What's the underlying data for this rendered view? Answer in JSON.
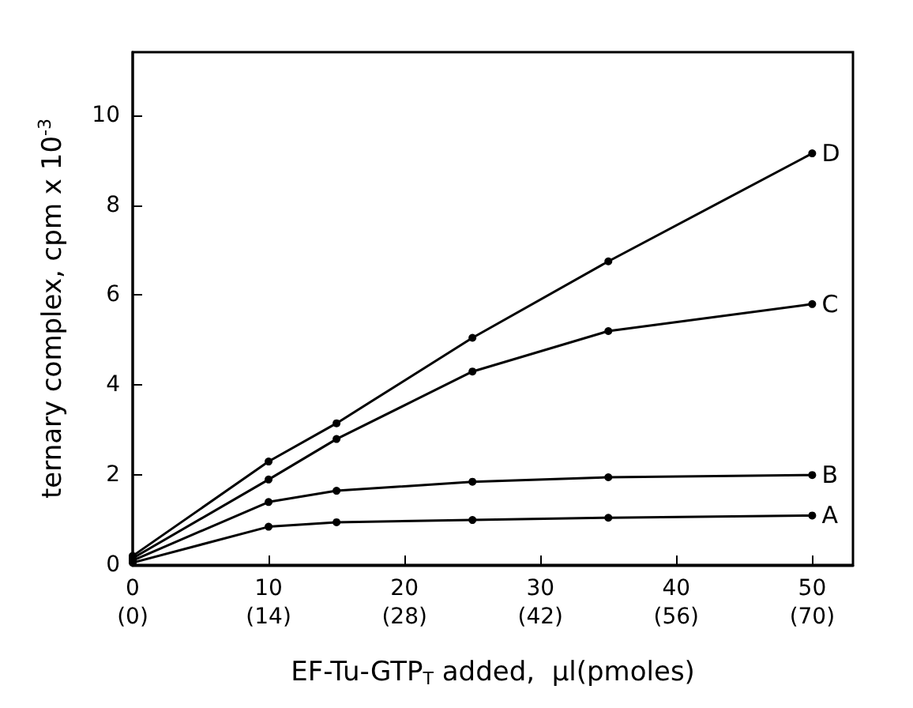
{
  "chart_data": {
    "type": "line",
    "xlabel": "EF-Tu-GTP$_{T}$ added,  μl(pmoles)",
    "ylabel": "ternary complex, cpm x 10$^{-3}$",
    "x": [
      0,
      10,
      15,
      25,
      35,
      50
    ],
    "series": [
      {
        "name": "A",
        "color": "#000000",
        "values": [
          0.05,
          0.85,
          0.95,
          1.0,
          1.05,
          1.1
        ]
      },
      {
        "name": "B",
        "color": "#000000",
        "values": [
          0.1,
          1.4,
          1.65,
          1.85,
          1.95,
          2.0
        ]
      },
      {
        "name": "C",
        "color": "#000000",
        "values": [
          0.15,
          1.9,
          2.8,
          4.3,
          5.2,
          5.8
        ]
      },
      {
        "name": "D",
        "color": "#000000",
        "values": [
          0.2,
          2.3,
          3.15,
          5.05,
          6.75,
          9.15
        ]
      }
    ],
    "xlim": [
      0,
      53
    ],
    "ylim": [
      0,
      11.4
    ],
    "xticks": [
      0,
      10,
      20,
      30,
      40,
      50
    ],
    "x2lim": [
      0,
      74.2
    ],
    "x2ticks": [
      {
        "value": 0,
        "label": "(0)"
      },
      {
        "value": 14,
        "label": "(14)"
      },
      {
        "value": 28,
        "label": "(28)"
      },
      {
        "value": 42,
        "label": "(42)"
      },
      {
        "value": 56,
        "label": "(56)"
      },
      {
        "value": 70,
        "label": "(70)"
      }
    ],
    "yticks": [
      0,
      2,
      4,
      6,
      8,
      10
    ],
    "grid": false,
    "marker": "circle",
    "line_style": "solid"
  }
}
